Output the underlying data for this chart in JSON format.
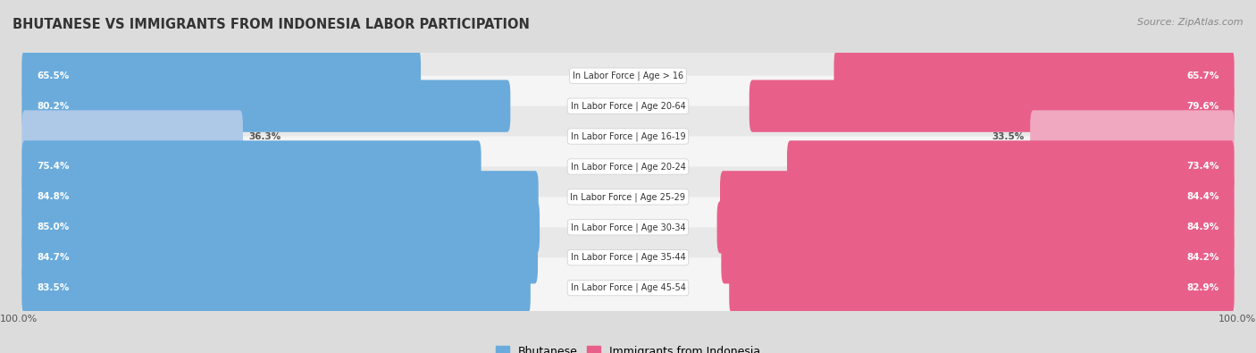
{
  "title": "BHUTANESE VS IMMIGRANTS FROM INDONESIA LABOR PARTICIPATION",
  "source": "Source: ZipAtlas.com",
  "categories": [
    "In Labor Force | Age > 16",
    "In Labor Force | Age 20-64",
    "In Labor Force | Age 16-19",
    "In Labor Force | Age 20-24",
    "In Labor Force | Age 25-29",
    "In Labor Force | Age 30-34",
    "In Labor Force | Age 35-44",
    "In Labor Force | Age 45-54"
  ],
  "bhutanese": [
    65.5,
    80.2,
    36.3,
    75.4,
    84.8,
    85.0,
    84.7,
    83.5
  ],
  "indonesia": [
    65.7,
    79.6,
    33.5,
    73.4,
    84.4,
    84.9,
    84.2,
    82.9
  ],
  "bhutanese_color": "#6aabdc",
  "bhutanese_light_color": "#aec8e8",
  "indonesia_color": "#e8608a",
  "indonesia_light_color": "#f0a8c0",
  "row_colors": [
    "#e8e8e8",
    "#f5f5f5"
  ],
  "bg_color": "#dcdcdc",
  "bar_height": 0.72,
  "max_value": 100.0,
  "legend_bhutanese": "Bhutanese",
  "legend_indonesia": "Immigrants from Indonesia",
  "title_fontsize": 10.5,
  "source_fontsize": 8,
  "label_fontsize": 7.5,
  "cat_fontsize": 7,
  "tick_fontsize": 8
}
